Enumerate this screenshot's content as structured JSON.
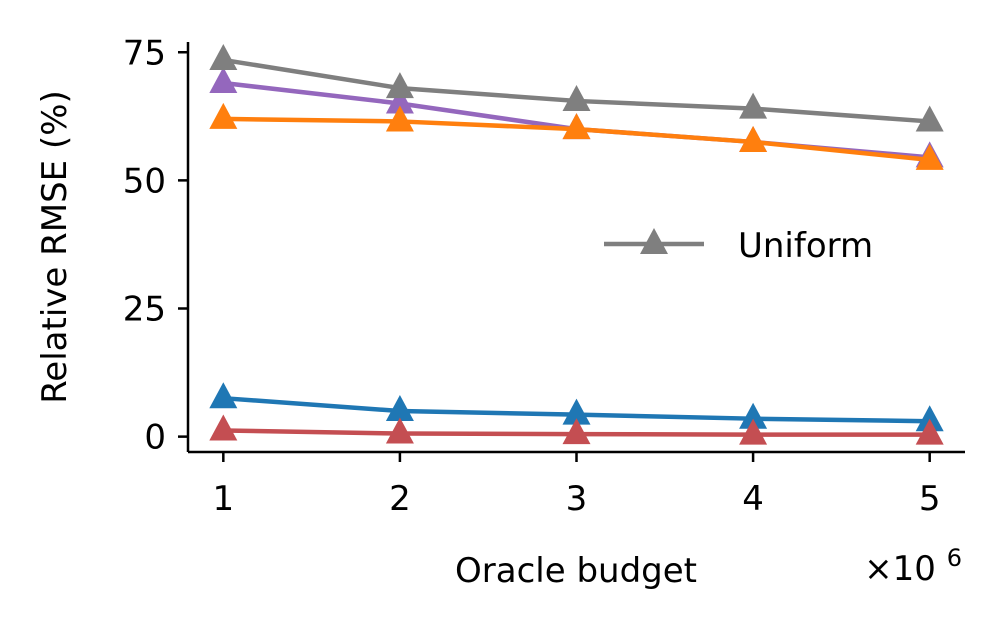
{
  "chart_data": {
    "type": "line",
    "title": "",
    "xlabel": "Oracle budget",
    "x_multiplier": "×10",
    "x_multiplier_exp": "6",
    "ylabel": "Relative RMSE (%)",
    "x": [
      1,
      2,
      3,
      4,
      5
    ],
    "xticks": [
      "1",
      "2",
      "3",
      "4",
      "5"
    ],
    "yticks": [
      "0",
      "25",
      "50",
      "75"
    ],
    "xlim": [
      0.8,
      5.2
    ],
    "ylim": [
      -3,
      77
    ],
    "grid": false,
    "legend_position": "center-right",
    "marker": "triangle-up",
    "series": [
      {
        "name": "",
        "color": "#9467bd",
        "values": [
          69,
          65,
          60,
          57.5,
          54.5
        ]
      },
      {
        "name": "Uniform",
        "color": "#7f7f7f",
        "values": [
          73.5,
          68,
          65.5,
          64,
          61.5
        ]
      },
      {
        "name": "",
        "color": "#ff7f0e",
        "values": [
          62,
          61.5,
          60,
          57.5,
          54
        ]
      },
      {
        "name": "",
        "color": "#1f77b4",
        "values": [
          7.5,
          5,
          4.3,
          3.5,
          3
        ]
      },
      {
        "name": "",
        "color": "#c44e52",
        "values": [
          1.2,
          0.6,
          0.5,
          0.4,
          0.4
        ]
      }
    ],
    "legend": [
      {
        "label": "Uniform",
        "color": "#7f7f7f"
      }
    ]
  }
}
